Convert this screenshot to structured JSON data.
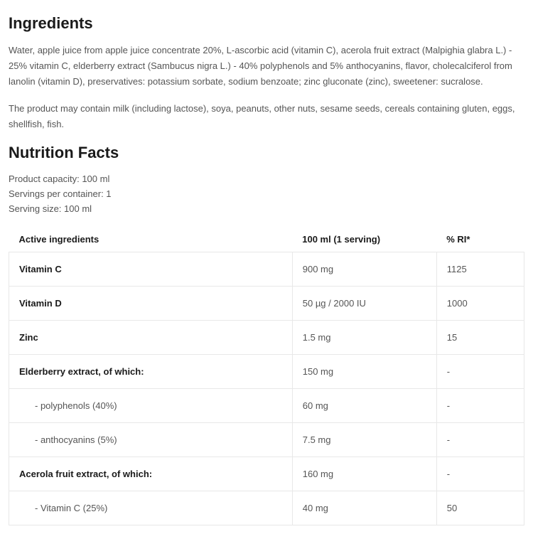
{
  "ingredients": {
    "heading": "Ingredients",
    "body": "Water, apple juice from apple juice concentrate 20%, L-ascorbic acid (vitamin C), acerola fruit extract (Malpighia glabra L.) - 25% vitamin C, elderberry extract (Sambucus nigra L.) - 40% polyphenols and 5% anthocyanins, flavor, cholecalciferol from lanolin (vitamin D), preservatives: potassium sorbate, sodium benzoate; zinc gluconate (zinc), sweetener: sucralose.",
    "allergens": "The product may contain milk (including lactose), soya, peanuts, other nuts, sesame seeds, cereals containing gluten, eggs, shellfish, fish."
  },
  "nutrition": {
    "heading": "Nutrition Facts",
    "meta": {
      "capacity": "Product capacity: 100 ml",
      "servings": "Servings per container: 1",
      "serving_size": "Serving size: 100 ml"
    },
    "columns": {
      "c1": "Active ingredients",
      "c2": "100 ml (1 serving)",
      "c3": "% RI*"
    },
    "rows": [
      {
        "name": "Vitamin C",
        "amount": "900 mg",
        "ri": "1125",
        "sub": false
      },
      {
        "name": "Vitamin D",
        "amount": "50 µg / 2000 IU",
        "ri": "1000",
        "sub": false
      },
      {
        "name": "Zinc",
        "amount": "1.5 mg",
        "ri": "15",
        "sub": false
      },
      {
        "name": "Elderberry extract, of which:",
        "amount": "150 mg",
        "ri": "-",
        "sub": false
      },
      {
        "name": "- polyphenols (40%)",
        "amount": "60 mg",
        "ri": "-",
        "sub": true
      },
      {
        "name": "- anthocyanins (5%)",
        "amount": "7.5 mg",
        "ri": "-",
        "sub": true
      },
      {
        "name": "Acerola fruit extract, of which:",
        "amount": "160 mg",
        "ri": "-",
        "sub": false
      },
      {
        "name": "- Vitamin C (25%)",
        "amount": "40 mg",
        "ri": "50",
        "sub": true
      }
    ]
  }
}
